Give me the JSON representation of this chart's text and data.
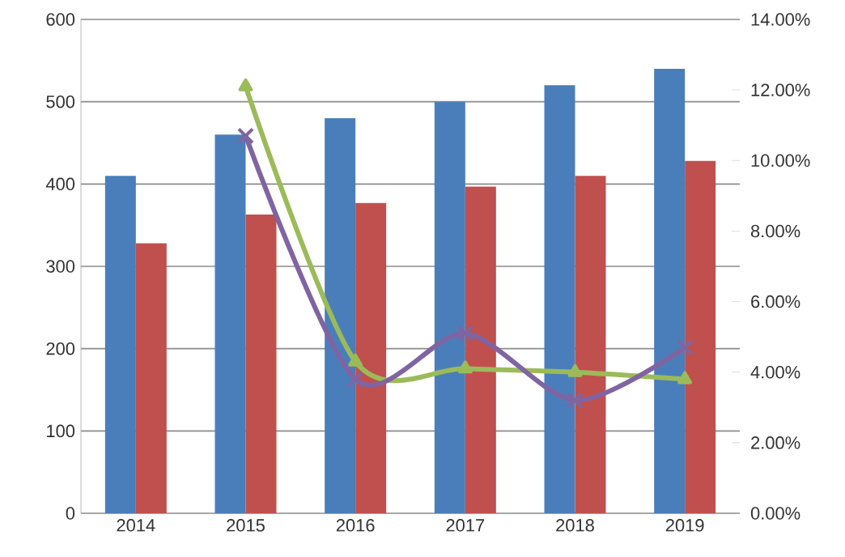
{
  "chart_data": {
    "type": "bar",
    "categories": [
      "2014",
      "2015",
      "2016",
      "2017",
      "2018",
      "2019"
    ],
    "series": [
      {
        "color": "#4a7ebb",
        "values": [
          410,
          460,
          480,
          500,
          520,
          540
        ]
      },
      {
        "color": "#c0504d",
        "values": [
          328,
          363,
          377,
          397,
          410,
          428
        ]
      },
      {
        "type": "line",
        "axis": "y2",
        "color": "#9bbb59",
        "marker": "triangle",
        "values": [
          null,
          12.1,
          4.3,
          4.1,
          4.0,
          3.8
        ]
      },
      {
        "type": "line",
        "axis": "y2",
        "color": "#8064a2",
        "marker": "cross",
        "values": [
          null,
          10.7,
          3.8,
          5.1,
          3.2,
          4.7
        ]
      }
    ],
    "ylim": [
      0,
      600
    ],
    "yticks": [
      0,
      100,
      200,
      300,
      400,
      500,
      600
    ],
    "y2lim": [
      0,
      14
    ],
    "y2ticks": [
      {
        "value": 0,
        "label": "0.00%"
      },
      {
        "value": 2,
        "label": "2.00%"
      },
      {
        "value": 4,
        "label": "4.00%"
      },
      {
        "value": 6,
        "label": "6.00%"
      },
      {
        "value": 8,
        "label": "8.00%"
      },
      {
        "value": 10,
        "label": "10.00%"
      },
      {
        "value": 12,
        "label": "12.00%"
      },
      {
        "value": 14,
        "label": "14.00%"
      }
    ],
    "grid": "y"
  }
}
